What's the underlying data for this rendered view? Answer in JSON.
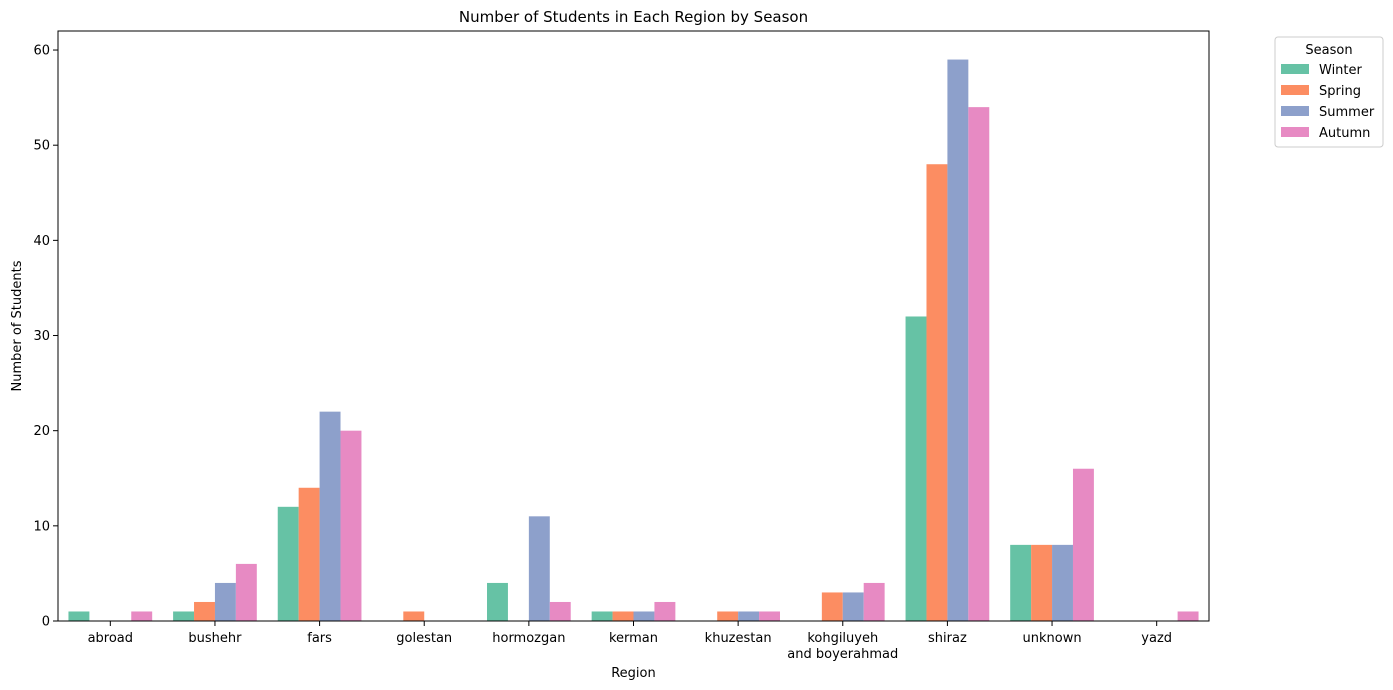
{
  "chart_data": {
    "type": "bar",
    "title": "Number of Students in Each Region by Season",
    "xlabel": "Region",
    "ylabel": "Number of Students",
    "ylim": [
      0,
      62
    ],
    "yticks": [
      0,
      10,
      20,
      30,
      40,
      50,
      60
    ],
    "grid": false,
    "legend_title": "Season",
    "legend_position": "outside-top-right",
    "categories": [
      [
        "abroad"
      ],
      [
        "bushehr"
      ],
      [
        "fars"
      ],
      [
        "golestan"
      ],
      [
        "hormozgan"
      ],
      [
        "kerman"
      ],
      [
        "khuzestan"
      ],
      [
        "kohgiluyeh",
        "and boyerahmad"
      ],
      [
        "shiraz"
      ],
      [
        "unknown"
      ],
      [
        "yazd"
      ]
    ],
    "series": [
      {
        "name": "Winter",
        "color": "#66c2a5",
        "values": [
          1,
          1,
          12,
          0,
          4,
          1,
          0,
          0,
          32,
          8,
          0
        ]
      },
      {
        "name": "Spring",
        "color": "#fc8d62",
        "values": [
          0,
          2,
          14,
          1,
          0,
          1,
          1,
          3,
          48,
          8,
          0
        ]
      },
      {
        "name": "Summer",
        "color": "#8da0cb",
        "values": [
          0,
          4,
          22,
          0,
          11,
          1,
          1,
          3,
          59,
          8,
          0
        ]
      },
      {
        "name": "Autumn",
        "color": "#e78ac3",
        "values": [
          1,
          6,
          20,
          0,
          2,
          2,
          1,
          4,
          54,
          16,
          1
        ]
      }
    ]
  }
}
